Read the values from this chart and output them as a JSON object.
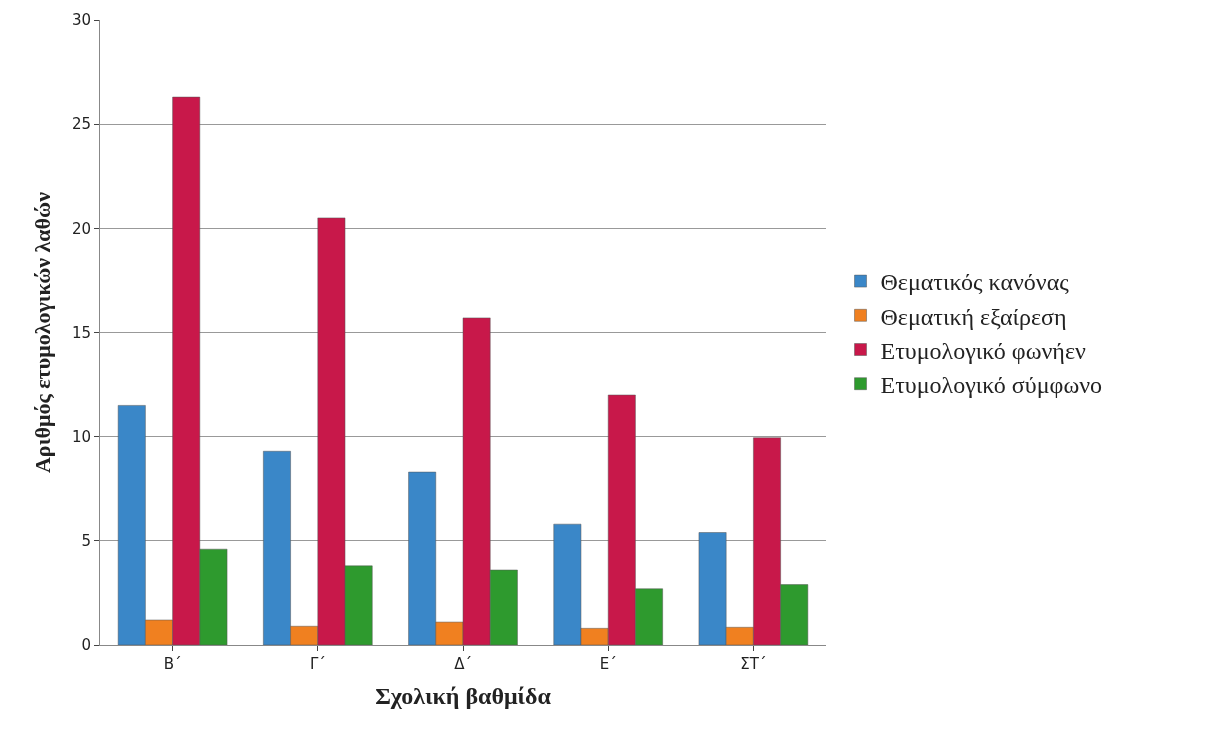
{
  "chart_data": {
    "type": "bar",
    "xlabel": "Σχολική βαθμίδα",
    "ylabel": "Αριθμός ετυμολογικών λαθών",
    "categories": [
      "Β΄",
      "Γ΄",
      "Δ΄",
      "Ε΄",
      "ΣΤ΄"
    ],
    "series": [
      {
        "name": "Θεματικός κανόνας",
        "color": "#3a87c8",
        "values": [
          11.5,
          9.3,
          8.3,
          5.8,
          5.4
        ]
      },
      {
        "name": "Θεματική εξαίρεση",
        "color": "#f08020",
        "values": [
          1.2,
          0.9,
          1.1,
          0.8,
          0.85
        ]
      },
      {
        "name": "Ετυμολογικό φωνήεν",
        "color": "#c8184a",
        "values": [
          26.3,
          20.5,
          15.7,
          12.0,
          9.95
        ]
      },
      {
        "name": "Ετυμολογικό σύμφωνο",
        "color": "#2e9a2e",
        "values": [
          4.6,
          3.8,
          3.6,
          2.7,
          2.9
        ]
      }
    ],
    "ylim": [
      0,
      30
    ],
    "yticks": [
      0,
      5,
      10,
      15,
      20,
      25,
      30
    ],
    "grid": "y",
    "legend": "right"
  }
}
